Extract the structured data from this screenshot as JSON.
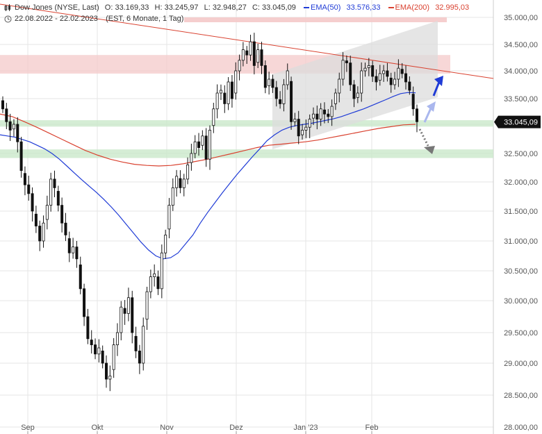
{
  "header": {
    "instrument": "Dow Jones (NYSE, Last)",
    "open": "O: 33.169,33",
    "high": "H: 33.245,97",
    "low": "L: 32.948,27",
    "close": "C: 33.045,09",
    "ema50_label": "EMA(50)",
    "ema50_value": "33.576,33",
    "ema200_label": "EMA(200)",
    "ema200_value": "32.995,03",
    "date_range": "22.08.2022 - 22.02.2023",
    "settings": "(EST, 6 Monate, 1 Tag)"
  },
  "colors": {
    "candle": "#111111",
    "ema50": "#1f3bd6",
    "ema200": "#d9412f",
    "resistance_zone": "#f4c9c9",
    "support_zone": "#cbe9cb",
    "channel": "#dcdcdc",
    "last_price_tag": "#111111"
  },
  "chart_data": {
    "type": "candlestick",
    "y_tick_labels": [
      "35.000,00",
      "34.500,00",
      "34.000,00",
      "33.500,00",
      "33.000,00",
      "32.500,00",
      "32.000,00",
      "31.500,00",
      "31.000,00",
      "30.500,00",
      "30.000,00",
      "29.500,00",
      "29.000,00",
      "28.500,00",
      "28.000,00"
    ],
    "x_tick_labels": [
      "Sep",
      "Okt",
      "Nov",
      "Dez",
      "Jan '23",
      "Feb"
    ],
    "ylim": [
      28000,
      35250
    ],
    "last_price": "33.045,09",
    "close_approx": [
      33300,
      33050,
      32900,
      33000,
      32700,
      32200,
      31950,
      31800,
      31500,
      31250,
      31000,
      31300,
      31600,
      32050,
      31900,
      31600,
      31300,
      31100,
      30800,
      30900,
      30700,
      30200,
      29750,
      29400,
      29300,
      29150,
      29250,
      29000,
      28750,
      28800,
      29300,
      29500,
      29900,
      29800,
      30050,
      29500,
      29200,
      29000,
      29600,
      30150,
      30400,
      30450,
      30200,
      30800,
      31100,
      31600,
      31900,
      32100,
      31900,
      32050,
      32300,
      32500,
      32700,
      32600,
      32800,
      32400,
      32900,
      33300,
      33600,
      33650,
      33400,
      33800,
      33500,
      34000,
      34200,
      34400,
      34300,
      34550,
      34100,
      34400,
      34100,
      33700,
      33850,
      33700,
      33500,
      33400,
      33750,
      34000,
      33050,
      33100,
      32800,
      32900,
      32950,
      33100,
      33200,
      33100,
      33300,
      33200,
      33150,
      33350,
      33600,
      33850,
      34200,
      34150,
      33750,
      33500,
      33600,
      34000,
      34050,
      34100,
      33900,
      33800,
      33950,
      34000,
      33900,
      33750,
      33850,
      34050,
      33950,
      33800,
      33650,
      33300,
      33050
    ],
    "ema50_approx": [
      32820,
      32800,
      32780,
      32740,
      32700,
      32640,
      32580,
      32500,
      32400,
      32280,
      32160,
      32040,
      31930,
      31820,
      31700,
      31570,
      31430,
      31280,
      31130,
      30980,
      30850,
      30750,
      30700,
      30720,
      30800,
      30950,
      31100,
      31300,
      31480,
      31650,
      31820,
      31980,
      32140,
      32290,
      32440,
      32580,
      32720,
      32820,
      32900,
      32950,
      32980,
      33000,
      33020,
      33050,
      33080,
      33110,
      33150,
      33200,
      33250,
      33300,
      33360,
      33420,
      33480,
      33540,
      33590,
      33610,
      33605
    ],
    "ema200_approx": [
      33200,
      33150,
      33050,
      32950,
      32850,
      32750,
      32650,
      32550,
      32470,
      32400,
      32350,
      32310,
      32290,
      32280,
      32290,
      32320,
      32360,
      32400,
      32450,
      32500,
      32550,
      32600,
      32640,
      32660,
      32680,
      32700,
      32730,
      32770,
      32810,
      32850,
      32890,
      32930,
      32960,
      32990,
      33000
    ],
    "overlays": {
      "resistance_zone": [
        33950,
        34300
      ],
      "support_zone_upper": [
        32960,
        33080
      ],
      "support_zone_lower": [
        32420,
        32570
      ],
      "downtrend_line": [
        [
          35300,
          "start"
        ],
        [
          33880,
          "end"
        ]
      ],
      "projection_arrows": [
        "up-blue",
        "up-light-blue",
        "down-gray-dotted"
      ]
    }
  }
}
